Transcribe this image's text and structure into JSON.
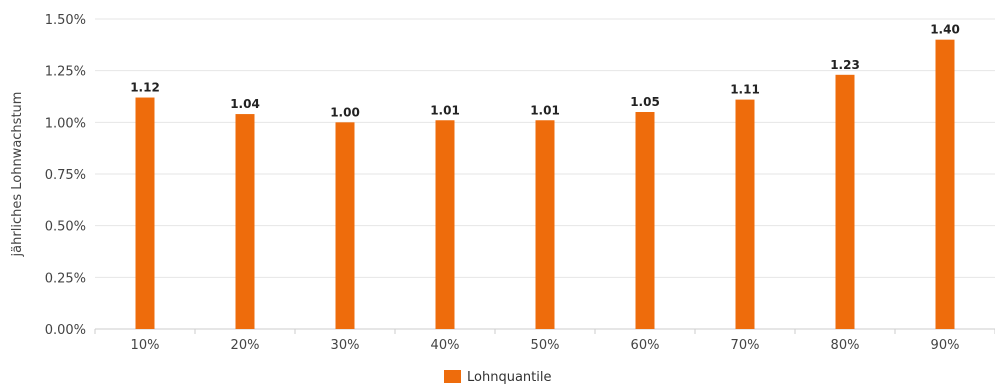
{
  "chart_data": {
    "type": "bar",
    "categories": [
      "10%",
      "20%",
      "30%",
      "40%",
      "50%",
      "60%",
      "70%",
      "80%",
      "90%"
    ],
    "series": [
      {
        "name": "Lohnquantile",
        "values": [
          1.12,
          1.04,
          1.0,
          1.01,
          1.01,
          1.05,
          1.11,
          1.23,
          1.4
        ],
        "data_labels": [
          "1.12",
          "1.04",
          "1.00",
          "1.01",
          "1.01",
          "1.05",
          "1.11",
          "1.23",
          "1.40"
        ]
      }
    ],
    "ylabel": "jährliches Lohnwachstum",
    "xlabel": "",
    "ylim": [
      0,
      1.5
    ],
    "yticks": [
      0,
      0.25,
      0.5,
      0.75,
      1.0,
      1.25,
      1.5
    ],
    "ytick_labels": [
      "0.00%",
      "0.25%",
      "0.50%",
      "0.75%",
      "1.00%",
      "1.25%",
      "1.50%"
    ],
    "grid": true,
    "legend_position": "bottom-center",
    "colors": {
      "bar": "#ee6c0c",
      "grid": "#e6e6e6",
      "axis": "#cccccc"
    }
  }
}
